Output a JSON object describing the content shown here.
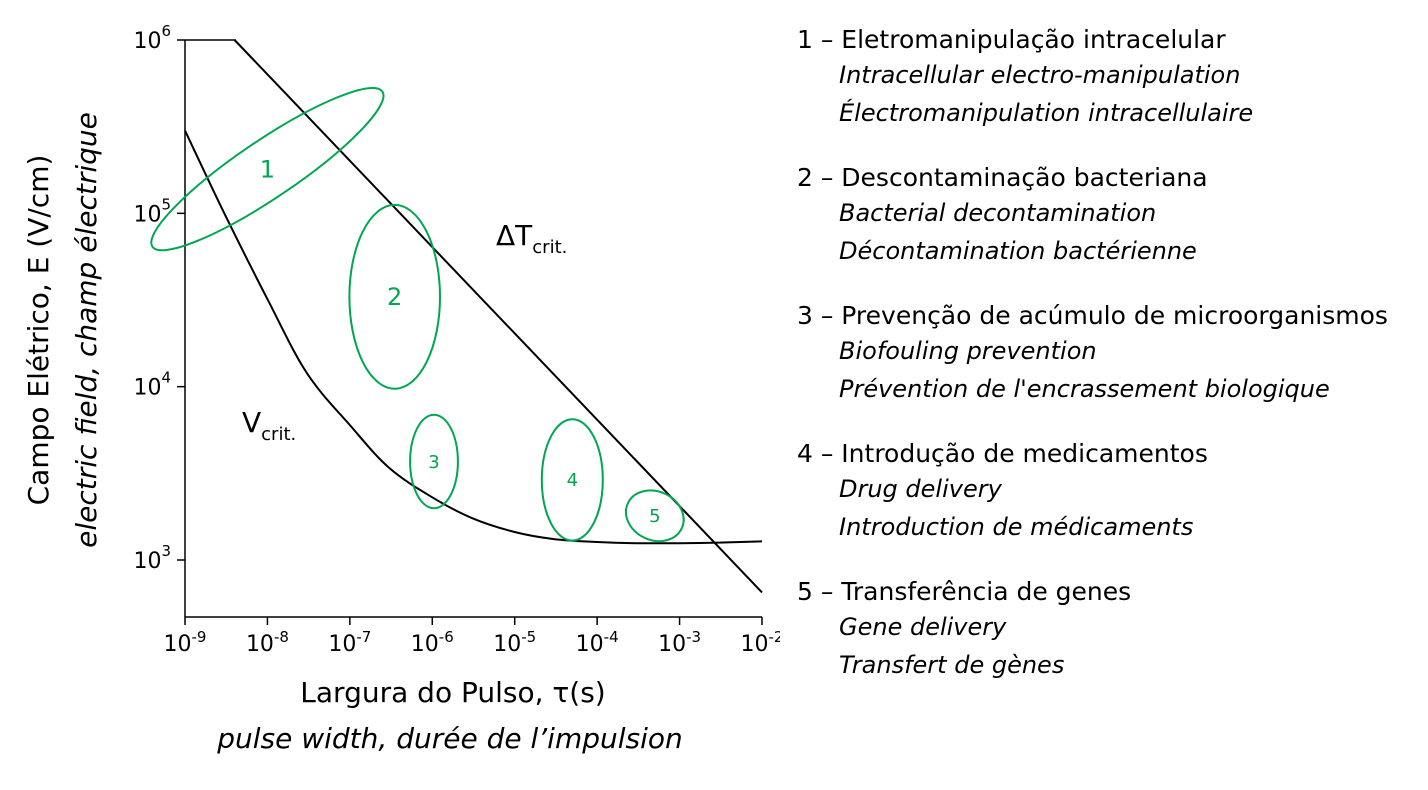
{
  "chart_data": {
    "type": "line",
    "x_scale": "log",
    "y_scale": "log",
    "xlim": [
      1e-09,
      0.01
    ],
    "ylim": [
      1000,
      1000000
    ],
    "xlabel": "Largura do Pulso, τ(s)",
    "xlabel_secondary": "pulse width, durée de l’impulsion",
    "ylabel": "Campo Elétrico, E (V/cm)",
    "ylabel_secondary": "electric field, champ électrique",
    "x_ticks": [
      {
        "base": "10",
        "exp": "-9"
      },
      {
        "base": "10",
        "exp": "-8"
      },
      {
        "base": "10",
        "exp": "-7"
      },
      {
        "base": "10",
        "exp": "-6"
      },
      {
        "base": "10",
        "exp": "-5"
      },
      {
        "base": "10",
        "exp": "-4"
      },
      {
        "base": "10",
        "exp": "-3"
      },
      {
        "base": "10",
        "exp": "-2"
      }
    ],
    "y_ticks": [
      {
        "base": "10",
        "exp": "3"
      },
      {
        "base": "10",
        "exp": "4"
      },
      {
        "base": "10",
        "exp": "5"
      },
      {
        "base": "10",
        "exp": "6"
      }
    ],
    "series": [
      {
        "label_main": "V",
        "label_sub": "crit.",
        "x": [
          1e-09,
          3e-09,
          1e-08,
          3e-08,
          1e-07,
          3e-07,
          1e-06,
          3e-06,
          1e-05,
          3e-05,
          0.0001,
          0.0003,
          0.001,
          0.003,
          0.01
        ],
        "y": [
          300000,
          100000,
          32000,
          12000,
          6000,
          3400,
          2300,
          1750,
          1450,
          1320,
          1270,
          1250,
          1250,
          1260,
          1280
        ]
      },
      {
        "label_main": "ΔT",
        "label_sub": "crit.",
        "x": [
          4e-09,
          0.01
        ],
        "y": [
          1000000,
          650
        ]
      }
    ],
    "regions": [
      {
        "label": "1",
        "cx": 1e-08,
        "cy": 180000,
        "rx_decades": 0.35,
        "ry_decades": 0.8,
        "angle_deg": 56
      },
      {
        "label": "2",
        "cx": 3.5e-07,
        "cy": 33000,
        "rx_decades": 0.55,
        "ry_decades": 0.53,
        "angle_deg": 0
      },
      {
        "label": "3",
        "cx": 1.05e-06,
        "cy": 3700,
        "rx_decades": 0.29,
        "ry_decades": 0.27,
        "angle_deg": 0
      },
      {
        "label": "4",
        "cx": 5e-05,
        "cy": 2900,
        "rx_decades": 0.37,
        "ry_decades": 0.35,
        "angle_deg": 0
      },
      {
        "label": "5",
        "cx": 0.0005,
        "cy": 1800,
        "rx_decades": 0.36,
        "ry_decades": 0.14,
        "angle_deg": 25
      }
    ]
  },
  "legend": [
    {
      "title": "1 – Eletromanipulação intracelular",
      "en": "Intracellular electro-manipulation",
      "fr": "Électromanipulation intracellulaire"
    },
    {
      "title": "2 – Descontaminação bacteriana",
      "en": "Bacterial decontamination",
      "fr": "Décontamination bactérienne"
    },
    {
      "title": "3 – Prevenção de acúmulo de microorganismos",
      "en": "Biofouling prevention",
      "fr": "Prévention de l'encrassement biologique"
    },
    {
      "title": "4 – Introdução de medicamentos",
      "en": "Drug delivery",
      "fr": "Introduction de médicaments"
    },
    {
      "title": "5 – Transferência de genes",
      "en": "Gene delivery",
      "fr": "Transfert de gènes"
    }
  ],
  "colors": {
    "region": "#00a651",
    "curve": "#000000"
  }
}
